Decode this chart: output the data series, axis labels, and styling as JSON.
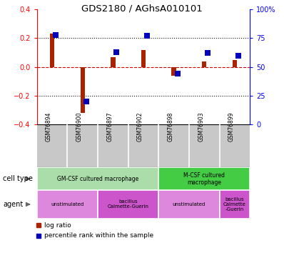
{
  "title": "GDS2180 / AGhsA010101",
  "samples": [
    "GSM76894",
    "GSM76900",
    "GSM76897",
    "GSM76902",
    "GSM76898",
    "GSM76903",
    "GSM76899"
  ],
  "log_ratio": [
    0.23,
    -0.32,
    0.07,
    0.12,
    -0.06,
    0.04,
    0.05
  ],
  "percentile": [
    78,
    20,
    63,
    77,
    44,
    62,
    60
  ],
  "ylim_left": [
    -0.4,
    0.4
  ],
  "ylim_right": [
    0,
    100
  ],
  "yticks_left": [
    -0.4,
    -0.2,
    0.0,
    0.2,
    0.4
  ],
  "yticks_right": [
    0,
    25,
    50,
    75,
    100
  ],
  "cell_type_groups": [
    {
      "label": "GM-CSF cultured macrophage",
      "start": 0,
      "end": 4,
      "color": "#aaddaa"
    },
    {
      "label": "M-CSF cultured\nmacrophage",
      "start": 4,
      "end": 7,
      "color": "#44cc44"
    }
  ],
  "agent_groups": [
    {
      "label": "unstimulated",
      "start": 0,
      "end": 2,
      "color": "#dd88dd"
    },
    {
      "label": "bacillus\nCalmette-Guerin",
      "start": 2,
      "end": 4,
      "color": "#cc55cc"
    },
    {
      "label": "unstimulated",
      "start": 4,
      "end": 6,
      "color": "#dd88dd"
    },
    {
      "label": "bacillus\nCalmette\n-Guerin",
      "start": 6,
      "end": 7,
      "color": "#cc55cc"
    }
  ],
  "bar_color_red": "#AA2200",
  "bar_color_blue": "#0000BB",
  "dotted_line_color": "#111111",
  "zero_line_color": "#CC0000",
  "bg_color": "#FFFFFF",
  "sample_bg_color": "#C8C8C8",
  "legend_red": "log ratio",
  "legend_blue": "percentile rank within the sample",
  "bar_width": 0.15,
  "marker_size": 28
}
